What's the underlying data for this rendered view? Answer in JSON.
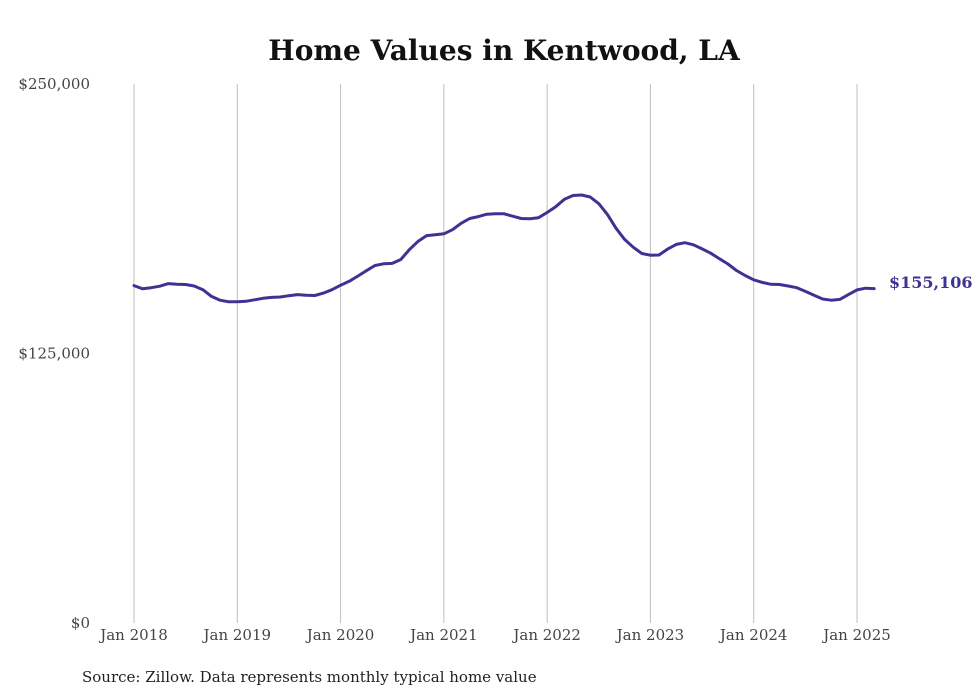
{
  "chart_data": {
    "type": "line",
    "title": "Home Values in Kentwood, LA",
    "xlabel": "",
    "ylabel": "",
    "ylim": [
      0,
      250000
    ],
    "y_ticks": [
      {
        "value": 0,
        "label": "$0"
      },
      {
        "value": 125000,
        "label": "$125,000"
      },
      {
        "value": 250000,
        "label": "$250,000"
      }
    ],
    "x_ticks": [
      {
        "value": 2018,
        "label": "Jan 2018"
      },
      {
        "value": 2019,
        "label": "Jan 2019"
      },
      {
        "value": 2020,
        "label": "Jan 2020"
      },
      {
        "value": 2021,
        "label": "Jan 2021"
      },
      {
        "value": 2022,
        "label": "Jan 2022"
      },
      {
        "value": 2023,
        "label": "Jan 2023"
      },
      {
        "value": 2024,
        "label": "Jan 2024"
      },
      {
        "value": 2025,
        "label": "Jan 2025"
      }
    ],
    "xlim": [
      2018,
      2025.17
    ],
    "grid": {
      "vertical": true,
      "horizontal": false
    },
    "line_color": "#3d3393",
    "end_label": "$155,106",
    "series": [
      {
        "x": [
          "2018-01",
          "2018-02",
          "2018-03",
          "2018-04",
          "2018-05",
          "2018-06",
          "2018-07",
          "2018-08",
          "2018-09",
          "2018-10",
          "2018-11",
          "2018-12",
          "2019-01",
          "2019-02",
          "2019-03",
          "2019-04",
          "2019-05",
          "2019-06",
          "2019-07",
          "2019-08",
          "2019-09",
          "2019-10",
          "2019-11",
          "2019-12",
          "2020-01",
          "2020-02",
          "2020-03",
          "2020-04",
          "2020-05",
          "2020-06",
          "2020-07",
          "2020-08",
          "2020-09",
          "2020-10",
          "2020-11",
          "2020-12",
          "2021-01",
          "2021-02",
          "2021-03",
          "2021-04",
          "2021-05",
          "2021-06",
          "2021-07",
          "2021-08",
          "2021-09",
          "2021-10",
          "2021-11",
          "2021-12",
          "2022-01",
          "2022-02",
          "2022-03",
          "2022-04",
          "2022-05",
          "2022-06",
          "2022-07",
          "2022-08",
          "2022-09",
          "2022-10",
          "2022-11",
          "2022-12",
          "2023-01",
          "2023-02",
          "2023-03",
          "2023-04",
          "2023-05",
          "2023-06",
          "2023-07",
          "2023-08",
          "2023-09",
          "2023-10",
          "2023-11",
          "2023-12",
          "2024-01",
          "2024-02",
          "2024-03",
          "2024-04",
          "2024-05",
          "2024-06",
          "2024-07",
          "2024-08",
          "2024-09",
          "2024-10",
          "2024-11",
          "2024-12",
          "2025-01",
          "2025-02",
          "2025-03"
        ],
        "values": [
          156500,
          155000,
          155500,
          156200,
          157400,
          157100,
          157000,
          156300,
          154600,
          151500,
          149700,
          149000,
          149000,
          149200,
          149900,
          150600,
          151000,
          151200,
          151800,
          152300,
          152000,
          151900,
          153000,
          154600,
          156700,
          158500,
          160900,
          163400,
          165800,
          166600,
          166800,
          168600,
          173200,
          177000,
          179700,
          180100,
          180500,
          182400,
          185400,
          187600,
          188500,
          189600,
          189800,
          189800,
          188700,
          187600,
          187500,
          188000,
          190400,
          193100,
          196500,
          198300,
          198500,
          197600,
          194500,
          189500,
          183100,
          177900,
          174300,
          171400,
          170600,
          170700,
          173400,
          175600,
          176400,
          175400,
          173500,
          171500,
          169000,
          166500,
          163500,
          161200,
          159200,
          158000,
          157100,
          157000,
          156300,
          155500,
          153800,
          152000,
          150300,
          149700,
          150100,
          152300,
          154500,
          155300,
          155106
        ]
      }
    ]
  },
  "source_note": "Source: Zillow. Data represents monthly typical home value"
}
